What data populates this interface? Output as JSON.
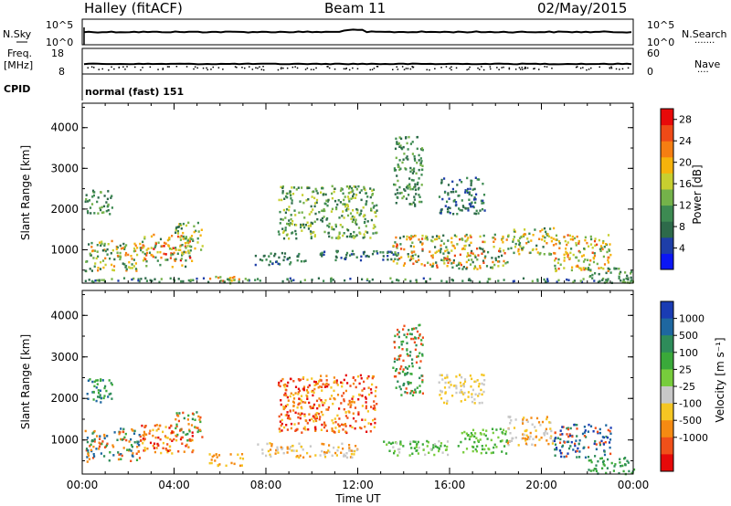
{
  "header": {
    "station": "Halley (fitACF)",
    "beam": "Beam 11",
    "date": "02/May/2015"
  },
  "strip_labels": {
    "nsky": "N.Sky",
    "nsearch": "N.Search",
    "freq": "Freq.",
    "freq_unit": "[MHz]",
    "nave": "Nave",
    "cpid": "CPID",
    "program": "normal (fast) 151",
    "noise_ticks": [
      "10^5",
      "10^0"
    ],
    "freq_ticks": [
      "18",
      "8"
    ],
    "nave_ticks": [
      "60",
      "0"
    ]
  },
  "chart_data": [
    {
      "type": "heatmap",
      "panel": "power",
      "ylabel": "Slant Range [km]",
      "xlabel": "Time UT",
      "xticks": [
        "00:00",
        "04:00",
        "08:00",
        "12:00",
        "16:00",
        "20:00",
        "00:00"
      ],
      "xlim_hours": [
        0,
        24
      ],
      "ylim": [
        180,
        4600
      ],
      "yticks": [
        1000,
        2000,
        3000,
        4000
      ],
      "colorbar": {
        "label": "Power [dB]",
        "ticks": [
          "4",
          "8",
          "12",
          "16",
          "20",
          "24",
          "28"
        ],
        "range": [
          0,
          30
        ],
        "colors": [
          "#0b16f4",
          "#1e3ea8",
          "#2d6a4a",
          "#3d8a52",
          "#74b24a",
          "#c7cf30",
          "#f6b30c",
          "#f57e12",
          "#ef4a17",
          "#e80a0a"
        ]
      },
      "scatter_regions": [
        {
          "t0": 0.1,
          "t1": 2.5,
          "r0": 500,
          "r1": 1250,
          "v0": 6,
          "v1": 24
        },
        {
          "t0": 2.5,
          "t1": 4.8,
          "r0": 600,
          "r1": 1400,
          "v0": 8,
          "v1": 28
        },
        {
          "t0": 0.1,
          "t1": 1.3,
          "r0": 1900,
          "r1": 2500,
          "v0": 6,
          "v1": 14
        },
        {
          "t0": 4.0,
          "t1": 5.2,
          "r0": 1000,
          "r1": 1700,
          "v0": 8,
          "v1": 20
        },
        {
          "t0": 5.5,
          "t1": 6.8,
          "r0": 200,
          "r1": 380,
          "v0": 12,
          "v1": 26
        },
        {
          "t0": 7.5,
          "t1": 9.8,
          "r0": 650,
          "r1": 950,
          "v0": 4,
          "v1": 12
        },
        {
          "t0": 8.5,
          "t1": 12.8,
          "r0": 1300,
          "r1": 2600,
          "v0": 6,
          "v1": 18
        },
        {
          "t0": 10.0,
          "t1": 13.8,
          "r0": 750,
          "r1": 1000,
          "v0": 4,
          "v1": 12
        },
        {
          "t0": 13.5,
          "t1": 18.5,
          "r0": 550,
          "r1": 1400,
          "v0": 6,
          "v1": 26
        },
        {
          "t0": 13.5,
          "t1": 14.8,
          "r0": 2100,
          "r1": 3800,
          "v0": 6,
          "v1": 14
        },
        {
          "t0": 15.5,
          "t1": 17.5,
          "r0": 1900,
          "r1": 2800,
          "v0": 4,
          "v1": 12
        },
        {
          "t0": 18.5,
          "t1": 20.5,
          "r0": 900,
          "r1": 1600,
          "v0": 8,
          "v1": 22
        },
        {
          "t0": 20.5,
          "t1": 23.0,
          "r0": 500,
          "r1": 1400,
          "v0": 10,
          "v1": 26
        },
        {
          "t0": 22.0,
          "t1": 24.0,
          "r0": 200,
          "r1": 600,
          "v0": 6,
          "v1": 14
        },
        {
          "t0": 0.0,
          "t1": 24.0,
          "r0": 230,
          "r1": 330,
          "v0": 4,
          "v1": 14
        }
      ]
    },
    {
      "type": "heatmap",
      "panel": "velocity",
      "ylabel": "Slant Range [km]",
      "xlabel": "Time UT",
      "xticks": [
        "00:00",
        "04:00",
        "08:00",
        "12:00",
        "16:00",
        "20:00",
        "00:00"
      ],
      "xlim_hours": [
        0,
        24
      ],
      "ylim": [
        180,
        4600
      ],
      "yticks": [
        1000,
        2000,
        3000,
        4000
      ],
      "colorbar": {
        "label": "Velocity [m s⁻¹]",
        "ticks": [
          "1000",
          "500",
          "100",
          "25",
          "-25",
          "-100",
          "-500",
          "-1000"
        ],
        "colors": [
          "#1a3cb4",
          "#1e67a0",
          "#2e8c5a",
          "#3aa93a",
          "#77cc3c",
          "#c8c8c8",
          "#f5c623",
          "#f58a12",
          "#f0501a",
          "#e60a0a"
        ]
      },
      "scatter_regions": [
        {
          "t0": 0.1,
          "t1": 2.5,
          "r0": 500,
          "r1": 1300,
          "c": [
            1,
            2,
            3,
            7,
            8
          ]
        },
        {
          "t0": 2.5,
          "t1": 4.8,
          "r0": 700,
          "r1": 1400,
          "c": [
            7,
            8,
            9,
            6
          ]
        },
        {
          "t0": 0.1,
          "t1": 1.3,
          "r0": 1900,
          "r1": 2500,
          "c": [
            1,
            2,
            3
          ]
        },
        {
          "t0": 4.0,
          "t1": 5.2,
          "r0": 1000,
          "r1": 1700,
          "c": [
            2,
            3,
            7,
            8
          ]
        },
        {
          "t0": 5.5,
          "t1": 7.0,
          "r0": 400,
          "r1": 700,
          "c": [
            6,
            7
          ]
        },
        {
          "t0": 7.5,
          "t1": 12.0,
          "r0": 600,
          "r1": 950,
          "c": [
            5,
            6,
            7
          ]
        },
        {
          "t0": 8.5,
          "t1": 12.8,
          "r0": 1200,
          "r1": 2600,
          "c": [
            7,
            8,
            9,
            6
          ]
        },
        {
          "t0": 13.0,
          "t1": 16.5,
          "r0": 650,
          "r1": 1000,
          "c": [
            5,
            3,
            4
          ]
        },
        {
          "t0": 16.5,
          "t1": 18.5,
          "r0": 700,
          "r1": 1300,
          "c": [
            3,
            4
          ]
        },
        {
          "t0": 13.5,
          "t1": 14.8,
          "r0": 2100,
          "r1": 3800,
          "c": [
            2,
            3,
            8
          ]
        },
        {
          "t0": 15.5,
          "t1": 17.5,
          "r0": 1900,
          "r1": 2600,
          "c": [
            5,
            6
          ]
        },
        {
          "t0": 18.5,
          "t1": 20.5,
          "r0": 900,
          "r1": 1600,
          "c": [
            5,
            6,
            7
          ]
        },
        {
          "t0": 20.5,
          "t1": 23.0,
          "r0": 600,
          "r1": 1400,
          "c": [
            0,
            1,
            2,
            8
          ]
        },
        {
          "t0": 22.0,
          "t1": 24.0,
          "r0": 200,
          "r1": 600,
          "c": [
            2,
            3
          ]
        }
      ]
    }
  ]
}
